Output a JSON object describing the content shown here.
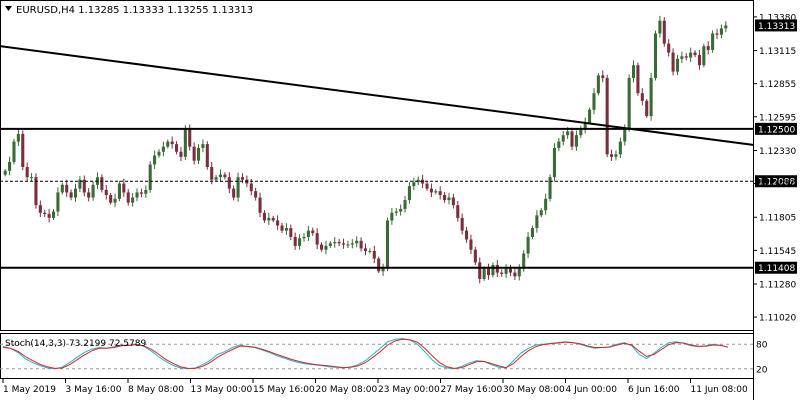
{
  "header": {
    "symbol_line": "EURUSD,H4  1.13285 1.13333 1.13255 1.13313",
    "menu_icon": "triangle-down-icon"
  },
  "indicator": {
    "label": "Stoch(14,3,3) 73.2199 72.5789",
    "levels": [
      "80",
      "20"
    ]
  },
  "price_axis": {
    "ticks": [
      "1.13380",
      "1.13115",
      "1.12855",
      "1.12595",
      "1.12330",
      "1.12070",
      "1.11805",
      "1.11545",
      "1.11280",
      "1.11020"
    ],
    "current_price_label": "1.13313",
    "hline_labels": [
      "1.12500",
      "1.12088",
      "1.11408"
    ]
  },
  "time_axis": {
    "ticks": [
      "1 May 2019",
      "3 May 16:00",
      "8 May 08:00",
      "13 May 00:00",
      "15 May 16:00",
      "20 May 08:00",
      "23 May 00:00",
      "27 May 16:00",
      "30 May 08:00",
      "4 Jun 00:00",
      "6 Jun 16:00",
      "11 Jun 08:00"
    ]
  },
  "colors": {
    "bull": "#3a6b35",
    "bear": "#7a2e3e",
    "stoch_main": "#20b6c9",
    "stoch_signal": "#d6262c",
    "label_bg": "#000000",
    "label_text": "#ffffff",
    "grid": "#c8c8c8"
  },
  "chart_data": {
    "type": "candlestick",
    "title": "EURUSD,H4",
    "ohlc_printed": {
      "open": 1.13285,
      "high": 1.13333,
      "low": 1.13255,
      "close": 1.13313
    },
    "horizontal_lines": [
      1.125,
      1.12088,
      1.11408
    ],
    "ylim": [
      1.1095,
      1.1345
    ],
    "trendline": {
      "from": [
        0,
        1.1315
      ],
      "to": [
        999,
        1.1212
      ]
    },
    "closes": [
      1.1217,
      1.1224,
      1.124,
      1.1246,
      1.122,
      1.1212,
      1.1212,
      1.119,
      1.1184,
      1.1183,
      1.118,
      1.1185,
      1.12,
      1.1206,
      1.12,
      1.1196,
      1.1203,
      1.121,
      1.12,
      1.1196,
      1.1206,
      1.1212,
      1.1202,
      1.1198,
      1.1192,
      1.1195,
      1.1207,
      1.12,
      1.1192,
      1.1196,
      1.12,
      1.1199,
      1.1202,
      1.1222,
      1.1229,
      1.1232,
      1.1236,
      1.124,
      1.1238,
      1.1232,
      1.1228,
      1.125,
      1.1236,
      1.1225,
      1.1235,
      1.1238,
      1.122,
      1.121,
      1.1212,
      1.1214,
      1.1212,
      1.1203,
      1.1196,
      1.1212,
      1.121,
      1.1207,
      1.1201,
      1.1196,
      1.1184,
      1.1178,
      1.118,
      1.1178,
      1.1174,
      1.117,
      1.1172,
      1.1165,
      1.1158,
      1.1164,
      1.1165,
      1.117,
      1.1168,
      1.1159,
      1.1155,
      1.1158,
      1.116,
      1.1161,
      1.116,
      1.1159,
      1.1159,
      1.116,
      1.1162,
      1.1156,
      1.1154,
      1.1154,
      1.1148,
      1.1138,
      1.114,
      1.1178,
      1.1184,
      1.1185,
      1.1187,
      1.1194,
      1.1205,
      1.1208,
      1.121,
      1.1207,
      1.1203,
      1.12,
      1.1201,
      1.1198,
      1.1194,
      1.1196,
      1.119,
      1.118,
      1.117,
      1.1163,
      1.1155,
      1.1145,
      1.1132,
      1.114,
      1.1135,
      1.1143,
      1.1137,
      1.1136,
      1.114,
      1.1137,
      1.1134,
      1.114,
      1.1152,
      1.1165,
      1.1172,
      1.1182,
      1.1186,
      1.1195,
      1.1212,
      1.1235,
      1.124,
      1.1245,
      1.1248,
      1.1236,
      1.1245,
      1.125,
      1.1255,
      1.1265,
      1.1278,
      1.1292,
      1.129,
      1.123,
      1.1228,
      1.123,
      1.124,
      1.125,
      1.129,
      1.13,
      1.1278,
      1.1272,
      1.126,
      1.129,
      1.1325,
      1.1335,
      1.1317,
      1.131,
      1.1295,
      1.1305,
      1.1307,
      1.1306,
      1.131,
      1.1308,
      1.13,
      1.1315,
      1.1312,
      1.1325,
      1.1324,
      1.1329,
      1.13313
    ],
    "stoch_main": [
      75,
      70,
      60,
      45,
      35,
      28,
      22,
      20,
      24,
      35,
      48,
      60,
      68,
      72,
      70,
      74,
      78,
      77,
      80,
      75,
      64,
      50,
      38,
      28,
      22,
      20,
      22,
      30,
      40,
      55,
      62,
      72,
      78,
      74,
      72,
      66,
      60,
      52,
      46,
      40,
      35,
      32,
      30,
      28,
      25,
      24,
      22,
      25,
      30,
      40,
      55,
      70,
      86,
      92,
      94,
      90,
      80,
      62,
      42,
      28,
      22,
      20,
      26,
      34,
      40,
      38,
      30,
      24,
      22,
      40,
      58,
      70,
      78,
      80,
      82,
      84,
      86,
      84,
      80,
      74,
      70,
      72,
      74,
      80,
      84,
      76,
      55,
      45,
      58,
      72,
      84,
      86,
      82,
      76,
      74,
      76,
      80,
      77,
      73
    ],
    "stoch_signal": [
      72,
      70,
      63,
      50,
      40,
      31,
      25,
      21,
      22,
      30,
      42,
      54,
      64,
      70,
      70,
      72,
      76,
      77,
      79,
      76,
      68,
      56,
      43,
      33,
      25,
      21,
      21,
      26,
      35,
      48,
      58,
      67,
      75,
      75,
      73,
      68,
      62,
      55,
      49,
      43,
      38,
      34,
      31,
      29,
      27,
      25,
      23,
      24,
      27,
      35,
      48,
      62,
      78,
      88,
      92,
      91,
      85,
      70,
      52,
      35,
      25,
      21,
      23,
      30,
      37,
      38,
      33,
      27,
      23,
      33,
      50,
      64,
      74,
      79,
      81,
      83,
      85,
      84,
      81,
      76,
      72,
      72,
      73,
      78,
      82,
      78,
      63,
      50,
      55,
      67,
      79,
      84,
      83,
      78,
      75,
      75,
      78,
      77,
      72.6
    ]
  }
}
